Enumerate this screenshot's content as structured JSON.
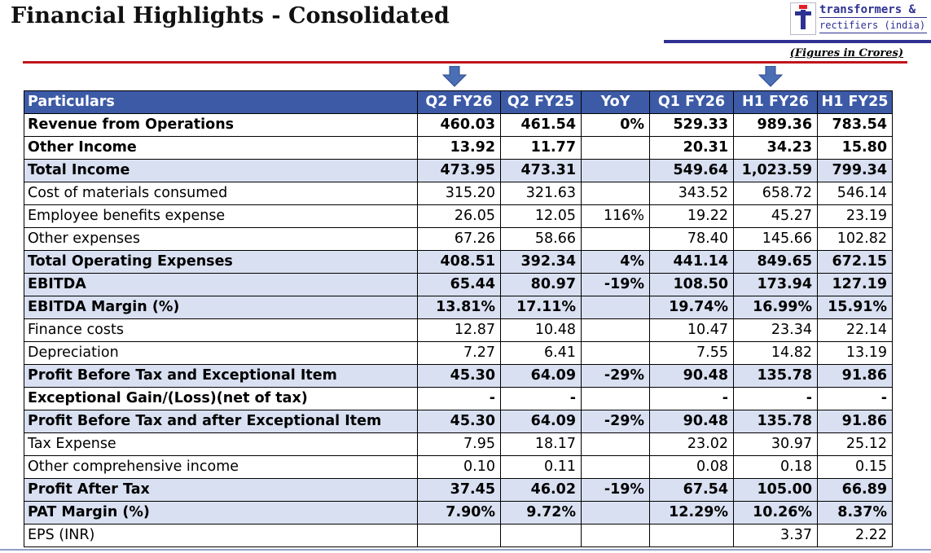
{
  "header": {
    "title": "Financial Highlights - Consolidated",
    "figures_note": "(Figures in Crores)"
  },
  "logo": {
    "line1": "transformers &",
    "line2": "rectifiers (india) ltd",
    "colors": {
      "blue": "#2e3192",
      "red": "#e31e24"
    }
  },
  "highlight_arrows": {
    "icon": "down-arrow-icon",
    "columns": [
      "Q2 FY26",
      "H1 FY26"
    ]
  },
  "table": {
    "columns": [
      "Particulars",
      "Q2 FY26",
      "Q2 FY25",
      "YoY",
      "Q1 FY26",
      "H1 FY26",
      "H1 FY25"
    ],
    "rows": [
      {
        "label": "Revenue from Operations",
        "values": [
          "460.03",
          "461.54",
          "0%",
          "529.33",
          "989.36",
          "783.54"
        ],
        "bold": true,
        "shaded": false
      },
      {
        "label": "Other Income",
        "values": [
          "13.92",
          "11.77",
          "",
          "20.31",
          "34.23",
          "15.80"
        ],
        "bold": true,
        "shaded": false
      },
      {
        "label": "Total Income",
        "values": [
          "473.95",
          "473.31",
          "",
          "549.64",
          "1,023.59",
          "799.34"
        ],
        "bold": true,
        "shaded": true
      },
      {
        "label": "Cost of materials consumed",
        "values": [
          "315.20",
          "321.63",
          "",
          "343.52",
          "658.72",
          "546.14"
        ],
        "bold": false,
        "shaded": false
      },
      {
        "label": "Employee benefits expense",
        "values": [
          "26.05",
          "12.05",
          "116%",
          "19.22",
          "45.27",
          "23.19"
        ],
        "bold": false,
        "shaded": false
      },
      {
        "label": "Other expenses",
        "values": [
          "67.26",
          "58.66",
          "",
          "78.40",
          "145.66",
          "102.82"
        ],
        "bold": false,
        "shaded": false
      },
      {
        "label": "Total Operating Expenses",
        "values": [
          "408.51",
          "392.34",
          "4%",
          "441.14",
          "849.65",
          "672.15"
        ],
        "bold": true,
        "shaded": true
      },
      {
        "label": "EBITDA",
        "values": [
          "65.44",
          "80.97",
          "-19%",
          "108.50",
          "173.94",
          "127.19"
        ],
        "bold": true,
        "shaded": true
      },
      {
        "label": "EBITDA Margin (%)",
        "values": [
          "13.81%",
          "17.11%",
          "",
          "19.74%",
          "16.99%",
          "15.91%"
        ],
        "bold": true,
        "shaded": true
      },
      {
        "label": "Finance costs",
        "values": [
          "12.87",
          "10.48",
          "",
          "10.47",
          "23.34",
          "22.14"
        ],
        "bold": false,
        "shaded": false
      },
      {
        "label": "Depreciation",
        "values": [
          "7.27",
          "6.41",
          "",
          "7.55",
          "14.82",
          "13.19"
        ],
        "bold": false,
        "shaded": false
      },
      {
        "label": "Profit Before Tax and Exceptional Item",
        "values": [
          "45.30",
          "64.09",
          "-29%",
          "90.48",
          "135.78",
          "91.86"
        ],
        "bold": true,
        "shaded": true
      },
      {
        "label": "Exceptional Gain/(Loss)(net of tax)",
        "values": [
          "-",
          "-",
          "",
          "-",
          "-",
          "-"
        ],
        "bold": true,
        "shaded": false
      },
      {
        "label": "Profit Before Tax and after Exceptional Item",
        "values": [
          "45.30",
          "64.09",
          "-29%",
          "90.48",
          "135.78",
          "91.86"
        ],
        "bold": true,
        "shaded": true
      },
      {
        "label": "Tax Expense",
        "values": [
          "7.95",
          "18.17",
          "",
          "23.02",
          "30.97",
          "25.12"
        ],
        "bold": false,
        "shaded": false
      },
      {
        "label": "Other comprehensive income",
        "values": [
          "0.10",
          "0.11",
          "",
          "0.08",
          "0.18",
          "0.15"
        ],
        "bold": false,
        "shaded": false
      },
      {
        "label": "Profit After Tax",
        "values": [
          "37.45",
          "46.02",
          "-19%",
          "67.54",
          "105.00",
          "66.89"
        ],
        "bold": true,
        "shaded": true
      },
      {
        "label": "PAT Margin (%)",
        "values": [
          "7.90%",
          "9.72%",
          "",
          "12.29%",
          "10.26%",
          "8.37%"
        ],
        "bold": true,
        "shaded": true
      },
      {
        "label": "EPS (INR)",
        "values": [
          "",
          "",
          "",
          "",
          "3.37",
          "2.22"
        ],
        "bold": false,
        "shaded": false
      }
    ]
  },
  "colors": {
    "header_bg": "#3c5aa6",
    "shaded_row": "#d9e0f1",
    "accent_red": "#c0141b",
    "accent_blue": "#2e3192"
  }
}
